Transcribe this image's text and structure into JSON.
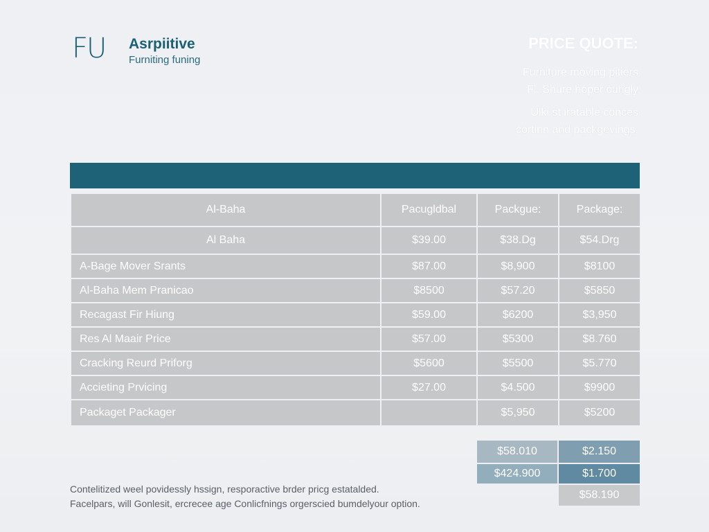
{
  "brand": {
    "mark": "FU",
    "name": "Asrpiitive",
    "tagline": "Furniting funing"
  },
  "quote": {
    "title": "PRICE QUOTE:",
    "lines": [
      "Furniture moving pitiers",
      "Fl. Shure hoper curigly",
      "Ulki st iratable conces",
      "cortinn and packgevings."
    ]
  },
  "table": {
    "header_row": [
      "Al-Baha",
      "Pacugldbal",
      "Packgue:",
      "Package:"
    ],
    "sub_row": [
      "Al Baha",
      "$39.00",
      "$38.Dg",
      "$54.Drg"
    ],
    "rows": [
      {
        "item": "A-Bage Mover Srants",
        "p1": "$87.00",
        "p2": "$8,900",
        "p3": "$8100"
      },
      {
        "item": "Al-Baha Mem Pranicao",
        "p1": "$8500",
        "p2": "$57.20",
        "p3": "$5850"
      },
      {
        "item": "Recagast Fir Hiung",
        "p1": "$59.00",
        "p2": "$6200",
        "p3": "$3,950"
      },
      {
        "item": "Res Al Maair Price",
        "p1": "$57.00",
        "p2": "$5300",
        "p3": "$8.760"
      },
      {
        "item": "Cracking Reurd Priforg",
        "p1": "$5600",
        "p2": "$5500",
        "p3": "$5.770"
      },
      {
        "item": "Accieting Prvicing",
        "p1": "$27.00",
        "p2": "$4.500",
        "p3": "$9900"
      },
      {
        "item": "Packaget Packager",
        "p1": "",
        "p2": "$5,950",
        "p3": "$5200"
      }
    ]
  },
  "summary": {
    "row1": [
      "$58.010",
      "$2.150"
    ],
    "row2": [
      "$424.900",
      "$1.700"
    ],
    "total": "$58.190",
    "colors": {
      "row1_a": "#a7b8c2",
      "row1_b": "#7f9eb0",
      "row2_a": "#92aebd",
      "row2_b": "#5f8aa1",
      "total": "#c8c9cb"
    }
  },
  "footnote": [
    "Contelitized weel povidessly hssign, resporactive brder pricg estatalded.",
    "Facelpars, will Gonlesit, ercrecee age Conlicfnings orgerscied bumdelyour option."
  ],
  "colors": {
    "accent": "#1d6277",
    "cell": "#c6c7c9",
    "brand": "#1a5f76"
  }
}
